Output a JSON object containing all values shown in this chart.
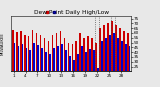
{
  "title": "Dew Point Daily High/Low",
  "left_label": "MILWAUKEE",
  "background_color": "#e8e8e8",
  "plot_bg": "#e8e8e8",
  "bar_width": 0.42,
  "highs": [
    63,
    61,
    62,
    58,
    57,
    63,
    60,
    58,
    55,
    52,
    58,
    60,
    62,
    55,
    50,
    48,
    52,
    60,
    55,
    57,
    55,
    50,
    65,
    68,
    70,
    72,
    68,
    65,
    62,
    60
  ],
  "lows": [
    50,
    46,
    48,
    44,
    42,
    50,
    47,
    44,
    40,
    38,
    44,
    46,
    48,
    42,
    36,
    32,
    38,
    46,
    40,
    43,
    42,
    24,
    52,
    55,
    58,
    60,
    55,
    52,
    48,
    46
  ],
  "high_color": "#cc0000",
  "low_color": "#0000cc",
  "dotted_region_start": 21,
  "dotted_region_end": 25,
  "xlim": [
    -0.6,
    29.6
  ],
  "ylim": [
    20,
    78
  ],
  "yticks": [
    25,
    30,
    35,
    40,
    45,
    50,
    55,
    60,
    65,
    70,
    75
  ],
  "tick_fontsize": 3.0,
  "title_fontsize": 4.2,
  "label_fontsize": 2.8,
  "n": 30
}
